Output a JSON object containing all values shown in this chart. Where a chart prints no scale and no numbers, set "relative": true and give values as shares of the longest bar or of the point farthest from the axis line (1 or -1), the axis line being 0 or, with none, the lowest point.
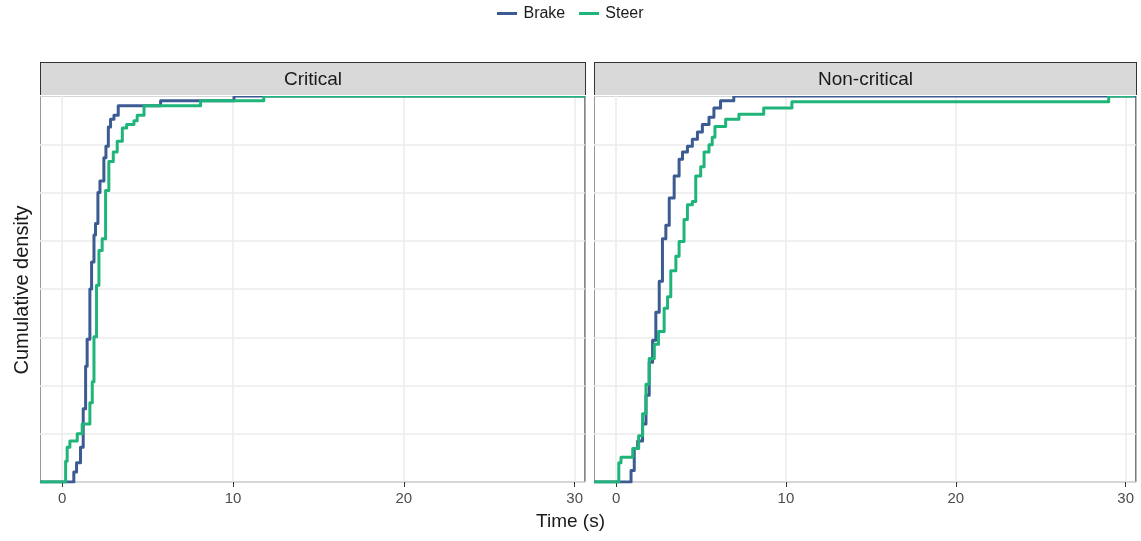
{
  "chart_data": [
    {
      "type": "step",
      "title": "Critical",
      "xlabel": "Time (s)",
      "ylabel": "Cumulative density",
      "relative": true,
      "legend": "top",
      "grid": true,
      "xlim": [
        -1.3,
        30.6
      ],
      "xticks": [
        0,
        10,
        20,
        30
      ],
      "series": [
        {
          "name": "Brake",
          "color": "#3b5b92",
          "x": [
            -1.3,
            0.68,
            0.84,
            1.07,
            1.23,
            1.37,
            1.46,
            1.62,
            1.72,
            1.86,
            1.95,
            2.09,
            2.21,
            2.44,
            2.56,
            2.7,
            2.83,
            3.03,
            3.28,
            5.76,
            10.06,
            30.6
          ],
          "values": [
            0,
            0.026,
            0.05,
            0.09,
            0.19,
            0.3,
            0.37,
            0.5,
            0.57,
            0.64,
            0.67,
            0.75,
            0.78,
            0.84,
            0.87,
            0.92,
            0.94,
            0.95,
            0.975,
            0.988,
            1,
            1
          ]
        },
        {
          "name": "Steer",
          "color": "#1fb57a",
          "x": [
            -1.3,
            0.2,
            0.29,
            0.45,
            0.88,
            1.17,
            1.62,
            1.76,
            1.86,
            2.01,
            2.15,
            2.34,
            2.54,
            2.73,
            2.99,
            3.22,
            3.52,
            3.77,
            4.2,
            4.39,
            4.79,
            8.1,
            11.8,
            30.6
          ],
          "values": [
            0,
            0.054,
            0.09,
            0.106,
            0.125,
            0.15,
            0.205,
            0.26,
            0.376,
            0.51,
            0.6,
            0.63,
            0.755,
            0.83,
            0.855,
            0.883,
            0.917,
            0.926,
            0.936,
            0.95,
            0.975,
            0.988,
            1,
            1
          ]
        }
      ]
    },
    {
      "type": "step",
      "title": "Non-critical",
      "relative": true,
      "grid": true,
      "xlim": [
        -1.3,
        30.6
      ],
      "xticks": [
        0,
        10,
        20,
        30
      ],
      "series": [
        {
          "color": "#3b5b92",
          "x": [
            -1.3,
            0.88,
            1.07,
            1.27,
            1.56,
            1.76,
            1.95,
            2.15,
            2.34,
            2.54,
            2.73,
            2.93,
            3.13,
            3.42,
            3.71,
            3.91,
            4.2,
            4.49,
            4.79,
            5.08,
            5.47,
            5.76,
            6.15,
            6.93,
            30.6
          ],
          "values": [
            0,
            0.03,
            0.087,
            0.106,
            0.15,
            0.225,
            0.31,
            0.367,
            0.44,
            0.52,
            0.63,
            0.665,
            0.736,
            0.793,
            0.836,
            0.855,
            0.87,
            0.888,
            0.907,
            0.926,
            0.945,
            0.969,
            0.988,
            1,
            1
          ]
        },
        {
          "color": "#1fb57a",
          "x": [
            -1.3,
            0.16,
            0.29,
            0.98,
            1.33,
            1.56,
            1.76,
            1.95,
            2.25,
            2.5,
            2.83,
            3.03,
            3.22,
            3.52,
            3.71,
            4.0,
            4.2,
            4.49,
            4.69,
            4.98,
            5.18,
            5.47,
            5.66,
            5.82,
            6.45,
            7.23,
            8.69,
            10.35,
            29.0,
            30.5
          ],
          "values": [
            0,
            0.05,
            0.064,
            0.087,
            0.12,
            0.177,
            0.253,
            0.32,
            0.357,
            0.39,
            0.45,
            0.48,
            0.547,
            0.585,
            0.623,
            0.68,
            0.718,
            0.727,
            0.793,
            0.817,
            0.855,
            0.874,
            0.893,
            0.921,
            0.94,
            0.953,
            0.969,
            0.985,
            1,
            1
          ]
        }
      ]
    }
  ]
}
